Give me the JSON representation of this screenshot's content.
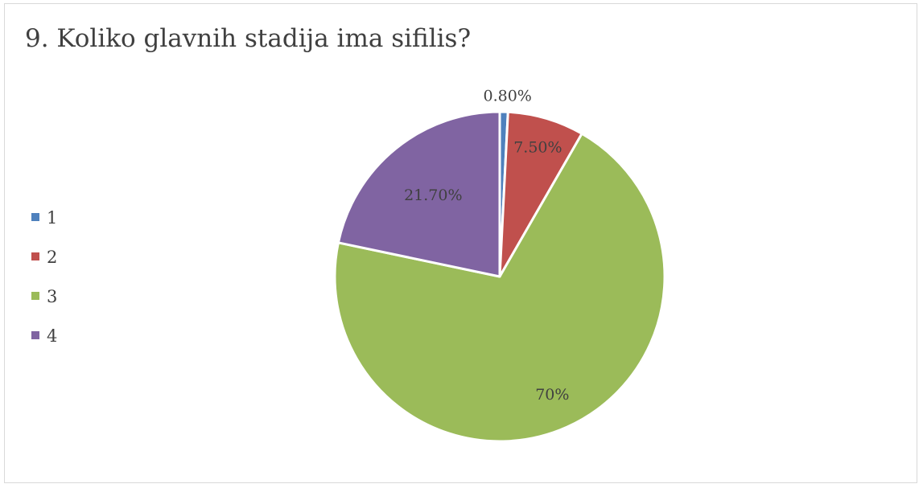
{
  "chart_data": {
    "type": "pie",
    "title": "9. Koliko glavnih stadija ima sifilis?",
    "categories": [
      "1",
      "2",
      "3",
      "4"
    ],
    "values": [
      0.8,
      7.5,
      70,
      21.7
    ],
    "data_labels": [
      "0.80%",
      "7.50%",
      "70%",
      "21.70%"
    ],
    "colors": [
      "#4f81bd",
      "#c0504d",
      "#9bbb59",
      "#8064a2"
    ],
    "legend_position": "left",
    "start_angle_deg": 0,
    "direction": "clockwise"
  }
}
